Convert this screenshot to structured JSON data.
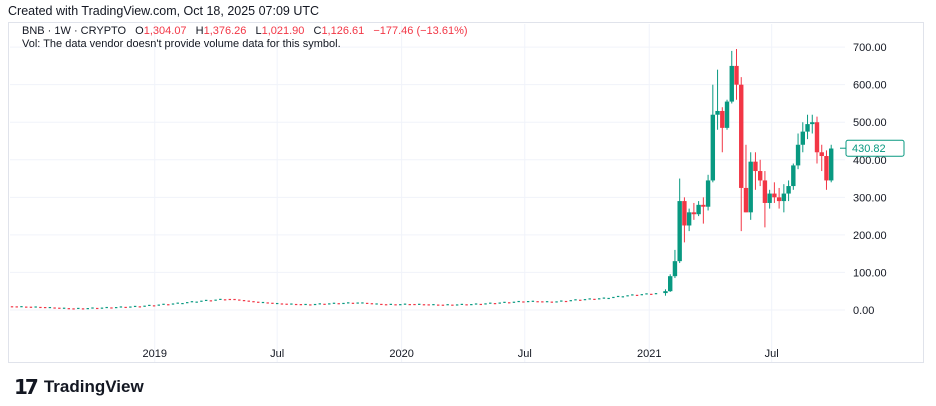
{
  "credit": "Created with TradingView.com, Oct 18, 2025 07:09 UTC",
  "legend": {
    "symbol": "BNB · 1W · CRYPTO",
    "open_label": "O",
    "open": "1,304.07",
    "high_label": "H",
    "high": "1,376.26",
    "low_label": "L",
    "low": "1,021.90",
    "close_label": "C",
    "close": "1,126.61",
    "change": "−177.46 (−13.61%)"
  },
  "volume_note": "Vol: The data vendor doesn't provide volume data for this symbol.",
  "logo": {
    "mark": "17",
    "word": "TradingView"
  },
  "colors": {
    "up": "#089981",
    "down": "#f23645",
    "grid": "#f0f3fa",
    "text": "#131722"
  },
  "chart_data": {
    "type": "candlestick",
    "interval": "1W",
    "x_tick_labels": [
      "2019",
      "Jul",
      "2020",
      "Jul",
      "2021",
      "Jul"
    ],
    "y_tick_labels": [
      "0.00",
      "100.00",
      "200.00",
      "300.00",
      "400.00",
      "500.00",
      "600.00",
      "700.00"
    ],
    "ylim": [
      -80,
      735
    ],
    "last_price_label": "430.82",
    "last_price": 430.82,
    "grid": true,
    "segments": [
      {
        "from": "2018-06-04",
        "to": "2021-01-18",
        "points": [
          [
            0,
            10
          ],
          [
            0.05,
            8
          ],
          [
            0.1,
            4
          ],
          [
            0.14,
            6
          ],
          [
            0.2,
            10
          ],
          [
            0.26,
            18
          ],
          [
            0.3,
            25
          ],
          [
            0.34,
            30
          ],
          [
            0.38,
            22
          ],
          [
            0.42,
            17
          ],
          [
            0.46,
            15
          ],
          [
            0.5,
            18
          ],
          [
            0.54,
            20
          ],
          [
            0.58,
            15
          ],
          [
            0.62,
            16
          ],
          [
            0.67,
            14
          ],
          [
            0.72,
            16
          ],
          [
            0.76,
            20
          ],
          [
            0.8,
            24
          ],
          [
            0.84,
            22
          ],
          [
            0.88,
            28
          ],
          [
            0.92,
            32
          ],
          [
            0.96,
            40
          ],
          [
            1.0,
            45
          ]
        ]
      }
    ],
    "candles": [
      {
        "t": "2021-01-25",
        "o": 45,
        "h": 55,
        "l": 38,
        "c": 50
      },
      {
        "t": "2021-02-01",
        "o": 50,
        "h": 95,
        "l": 48,
        "c": 90
      },
      {
        "t": "2021-02-08",
        "o": 90,
        "h": 160,
        "l": 85,
        "c": 130
      },
      {
        "t": "2021-02-15",
        "o": 130,
        "h": 350,
        "l": 125,
        "c": 290
      },
      {
        "t": "2021-02-22",
        "o": 290,
        "h": 300,
        "l": 180,
        "c": 225
      },
      {
        "t": "2021-03-01",
        "o": 225,
        "h": 270,
        "l": 210,
        "c": 260
      },
      {
        "t": "2021-03-08",
        "o": 260,
        "h": 285,
        "l": 240,
        "c": 255
      },
      {
        "t": "2021-03-15",
        "o": 255,
        "h": 290,
        "l": 250,
        "c": 280
      },
      {
        "t": "2021-03-22",
        "o": 280,
        "h": 300,
        "l": 230,
        "c": 275
      },
      {
        "t": "2021-03-29",
        "o": 275,
        "h": 360,
        "l": 265,
        "c": 345
      },
      {
        "t": "2021-04-05",
        "o": 345,
        "h": 600,
        "l": 340,
        "c": 520
      },
      {
        "t": "2021-04-12",
        "o": 520,
        "h": 640,
        "l": 480,
        "c": 530
      },
      {
        "t": "2021-04-19",
        "o": 530,
        "h": 540,
        "l": 420,
        "c": 485
      },
      {
        "t": "2021-04-26",
        "o": 485,
        "h": 560,
        "l": 480,
        "c": 555
      },
      {
        "t": "2021-05-03",
        "o": 555,
        "h": 690,
        "l": 550,
        "c": 650
      },
      {
        "t": "2021-05-10",
        "o": 650,
        "h": 695,
        "l": 560,
        "c": 600
      },
      {
        "t": "2021-05-17",
        "o": 600,
        "h": 620,
        "l": 210,
        "c": 325
      },
      {
        "t": "2021-05-24",
        "o": 325,
        "h": 440,
        "l": 260,
        "c": 260
      },
      {
        "t": "2021-05-31",
        "o": 260,
        "h": 420,
        "l": 240,
        "c": 395
      },
      {
        "t": "2021-06-07",
        "o": 395,
        "h": 420,
        "l": 320,
        "c": 370
      },
      {
        "t": "2021-06-14",
        "o": 370,
        "h": 400,
        "l": 330,
        "c": 345
      },
      {
        "t": "2021-06-21",
        "o": 345,
        "h": 370,
        "l": 220,
        "c": 285
      },
      {
        "t": "2021-06-28",
        "o": 285,
        "h": 320,
        "l": 270,
        "c": 310
      },
      {
        "t": "2021-07-05",
        "o": 310,
        "h": 340,
        "l": 285,
        "c": 300
      },
      {
        "t": "2021-07-12",
        "o": 300,
        "h": 325,
        "l": 270,
        "c": 290
      },
      {
        "t": "2021-07-19",
        "o": 290,
        "h": 335,
        "l": 260,
        "c": 310
      },
      {
        "t": "2021-07-26",
        "o": 310,
        "h": 345,
        "l": 290,
        "c": 330
      },
      {
        "t": "2021-08-02",
        "o": 330,
        "h": 390,
        "l": 320,
        "c": 385
      },
      {
        "t": "2021-08-09",
        "o": 385,
        "h": 470,
        "l": 375,
        "c": 440
      },
      {
        "t": "2021-08-16",
        "o": 440,
        "h": 500,
        "l": 420,
        "c": 475
      },
      {
        "t": "2021-08-23",
        "o": 475,
        "h": 520,
        "l": 455,
        "c": 495
      },
      {
        "t": "2021-08-30",
        "o": 495,
        "h": 520,
        "l": 470,
        "c": 500
      },
      {
        "t": "2021-09-06",
        "o": 500,
        "h": 515,
        "l": 390,
        "c": 420
      },
      {
        "t": "2021-09-13",
        "o": 420,
        "h": 440,
        "l": 370,
        "c": 410
      },
      {
        "t": "2021-09-20",
        "o": 410,
        "h": 425,
        "l": 320,
        "c": 345
      },
      {
        "t": "2021-09-27",
        "o": 345,
        "h": 440,
        "l": 340,
        "c": 430
      }
    ]
  }
}
